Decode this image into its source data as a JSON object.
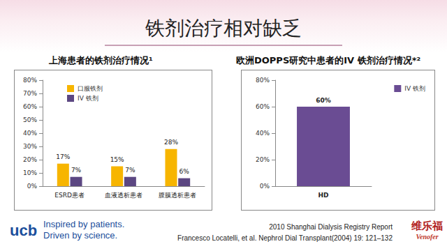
{
  "title": "铁剂治疗相对缺乏",
  "chart_data": [
    {
      "type": "bar",
      "title": "上海患者的铁剂治疗情况¹",
      "categories": [
        "ESRD患者",
        "血液透析患者",
        "腹膜透析患者"
      ],
      "series": [
        {
          "name": "口服铁剂",
          "color": "#f7b500",
          "values": [
            17,
            15,
            28
          ],
          "value_labels": [
            "17%",
            "15%",
            "28%"
          ]
        },
        {
          "name": "IV 铁剂",
          "color": "#5c4782",
          "values": [
            7,
            7,
            6
          ],
          "value_labels": [
            "7%",
            "7%",
            "6%"
          ]
        }
      ],
      "ylim": [
        0,
        80
      ],
      "yticks": [
        {
          "value": 0,
          "label": "0%"
        },
        {
          "value": 10,
          "label": "10%"
        },
        {
          "value": 20,
          "label": "20%"
        },
        {
          "value": 30,
          "label": "30%"
        },
        {
          "value": 40,
          "label": "40%"
        },
        {
          "value": 50,
          "label": "50%"
        },
        {
          "value": 60,
          "label": "60%"
        },
        {
          "value": 70,
          "label": "70%"
        },
        {
          "value": 80,
          "label": "80%"
        }
      ],
      "grid": false,
      "legend": "top-left",
      "data_labels": true
    },
    {
      "type": "bar",
      "title": "欧洲DOPPS研究中患者的IV  铁剂治疗情况*²",
      "categories": [
        "HD"
      ],
      "series": [
        {
          "name": "IV 铁剂",
          "color": "#6a4c93",
          "values": [
            60
          ],
          "value_labels": [
            "60%"
          ]
        }
      ],
      "ylim": [
        0,
        80
      ],
      "yticks": [
        {
          "value": 0,
          "label": "0%"
        },
        {
          "value": 20,
          "label": "20%"
        },
        {
          "value": 40,
          "label": "40%"
        },
        {
          "value": 60,
          "label": "60%"
        },
        {
          "value": 80,
          "label": "80%"
        }
      ],
      "grid": false,
      "legend": "top-right",
      "data_labels": true
    }
  ],
  "logo": "ucb",
  "tagline": [
    "Inspired by patients.",
    "Driven by science."
  ],
  "references": [
    "2010 Shanghai Dialysis Registry Report",
    "Francesco Locatelli, et al. Nephrol Dial Transplant(2004) 19: 121–132"
  ],
  "brand": [
    "维乐福",
    "Venofer"
  ]
}
